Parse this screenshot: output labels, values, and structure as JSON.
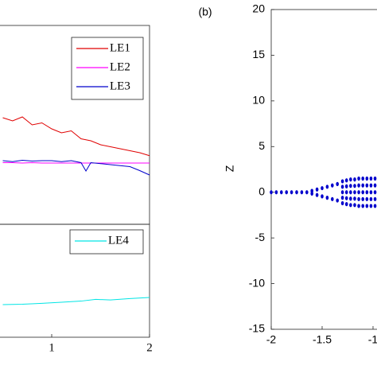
{
  "chart_data": [
    {
      "type": "line",
      "xlim": [
        0,
        2
      ],
      "ylim": [
        0,
        10
      ],
      "x": [
        0.5,
        0.6,
        0.7,
        0.8,
        0.9,
        1.0,
        1.1,
        1.2,
        1.3,
        1.35,
        1.4,
        1.5,
        1.6,
        1.7,
        1.8,
        1.9,
        2.0
      ],
      "series": [
        {
          "name": "LE1",
          "color": "#e00000",
          "values": [
            5.36,
            5.2,
            5.4,
            5.0,
            5.1,
            4.8,
            4.6,
            4.7,
            4.3,
            4.25,
            4.2,
            4.0,
            3.9,
            3.8,
            3.7,
            3.6,
            3.45
          ]
        },
        {
          "name": "LE2",
          "color": "#ff00ff",
          "values": [
            3.1,
            3.1,
            3.08,
            3.1,
            3.08,
            3.08,
            3.08,
            3.08,
            3.08,
            3.08,
            3.08,
            3.08,
            3.08,
            3.08,
            3.08,
            3.08,
            3.08
          ]
        },
        {
          "name": "LE3",
          "color": "#0000cc",
          "values": [
            3.2,
            3.15,
            3.22,
            3.18,
            3.2,
            3.2,
            3.15,
            3.2,
            3.1,
            2.68,
            3.1,
            3.05,
            3.0,
            2.95,
            2.9,
            2.7,
            2.48
          ]
        }
      ],
      "legend": "upper right"
    },
    {
      "type": "line",
      "xlim": [
        0,
        2
      ],
      "ylim": [
        0,
        10
      ],
      "xticks": [
        1,
        2
      ],
      "x": [
        0.5,
        0.7,
        0.9,
        1.1,
        1.3,
        1.45,
        1.6,
        1.8,
        2.0
      ],
      "series": [
        {
          "name": "LE4",
          "color": "#00e5e5",
          "values": [
            2.89,
            2.92,
            3.0,
            3.1,
            3.2,
            3.35,
            3.3,
            3.42,
            3.52
          ]
        }
      ],
      "legend": "upper right"
    },
    {
      "type": "scatter",
      "panel_label": "(b)",
      "ylabel": "Z",
      "color": "#0000cc",
      "xlim": [
        -2,
        -1
      ],
      "ylim": [
        -15,
        20
      ],
      "xticks": [
        -2,
        -1.5,
        -1
      ],
      "yticks": [
        -15,
        -10,
        -5,
        0,
        5,
        10,
        15,
        20
      ],
      "x": [
        -2,
        -1.95,
        -1.9,
        -1.85,
        -1.8,
        -1.75,
        -1.7,
        -1.65,
        -1.6,
        -1.6,
        -1.55,
        -1.55,
        -1.5,
        -1.5,
        -1.45,
        -1.45,
        -1.4,
        -1.4,
        -1.35,
        -1.35,
        -1.3,
        -1.3,
        -1.3,
        -1.3,
        -1.3,
        -1.26,
        -1.26,
        -1.26,
        -1.26,
        -1.26,
        -1.22,
        -1.22,
        -1.22,
        -1.22,
        -1.22,
        -1.18,
        -1.18,
        -1.18,
        -1.18,
        -1.18,
        -1.14,
        -1.14,
        -1.14,
        -1.14,
        -1.14,
        -1.1,
        -1.1,
        -1.1,
        -1.1,
        -1.1,
        -1.06,
        -1.06,
        -1.06,
        -1.06,
        -1.06,
        -1.02,
        -1.02,
        -1.02,
        -1.02,
        -1.02,
        -0.98,
        -0.98,
        -0.98,
        -0.98,
        -0.98
      ],
      "values": [
        0,
        0,
        0,
        0,
        0,
        0,
        0,
        0,
        0.15,
        -0.15,
        0.3,
        -0.3,
        0.45,
        -0.45,
        0.6,
        -0.6,
        0.75,
        -0.75,
        0.9,
        -0.9,
        -1.2,
        -0.6,
        0,
        0.6,
        1.2,
        -1.3,
        -0.65,
        0,
        0.65,
        1.3,
        -1.4,
        -0.7,
        0,
        0.7,
        1.4,
        -1.4,
        -0.7,
        0,
        0.7,
        1.4,
        -1.5,
        -0.75,
        0,
        0.75,
        1.5,
        -1.5,
        -0.75,
        0,
        0.75,
        1.5,
        -1.5,
        -0.75,
        0,
        0.75,
        1.5,
        -1.5,
        -0.75,
        0,
        0.75,
        1.5,
        -1.5,
        -0.75,
        0,
        0.75,
        1.5
      ]
    }
  ]
}
